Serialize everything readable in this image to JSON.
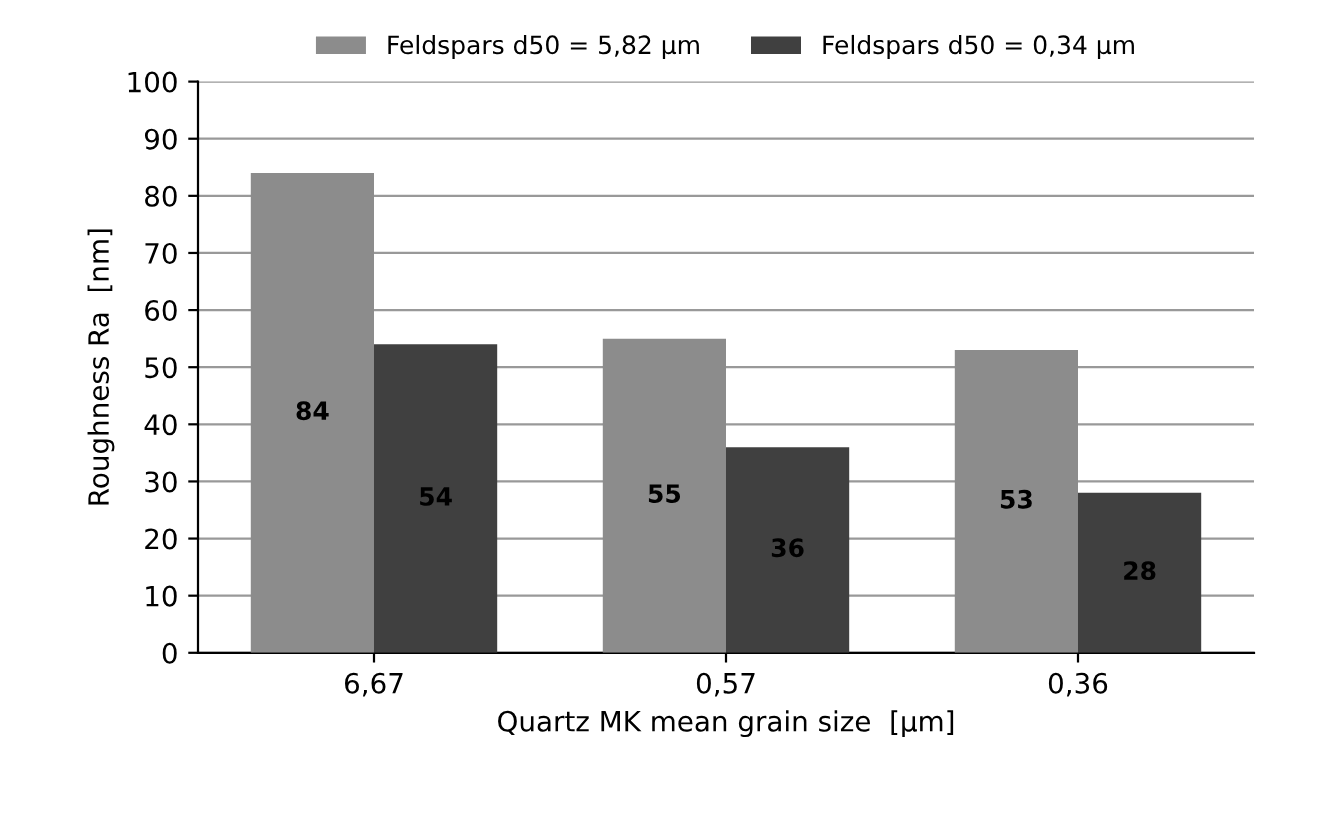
{
  "chart_data": {
    "type": "bar",
    "xlabel": "Quartz MK mean grain size  [µm]",
    "ylabel": "Roughness Ra  [nm]",
    "categories": [
      "6,67",
      "0,57",
      "0,36"
    ],
    "series": [
      {
        "name": "Feldspars d50 = 5,82 µm",
        "color": "#8c8c8c",
        "values": [
          84,
          55,
          53
        ]
      },
      {
        "name": "Feldspars d50 = 0,34 µm",
        "color": "#404040",
        "values": [
          54,
          36,
          28
        ]
      }
    ],
    "ylim": [
      0,
      100
    ],
    "yticks": [
      0,
      10,
      20,
      30,
      40,
      50,
      60,
      70,
      80,
      90,
      100
    ],
    "grid": "y",
    "legend": "top",
    "data_labels": true
  }
}
